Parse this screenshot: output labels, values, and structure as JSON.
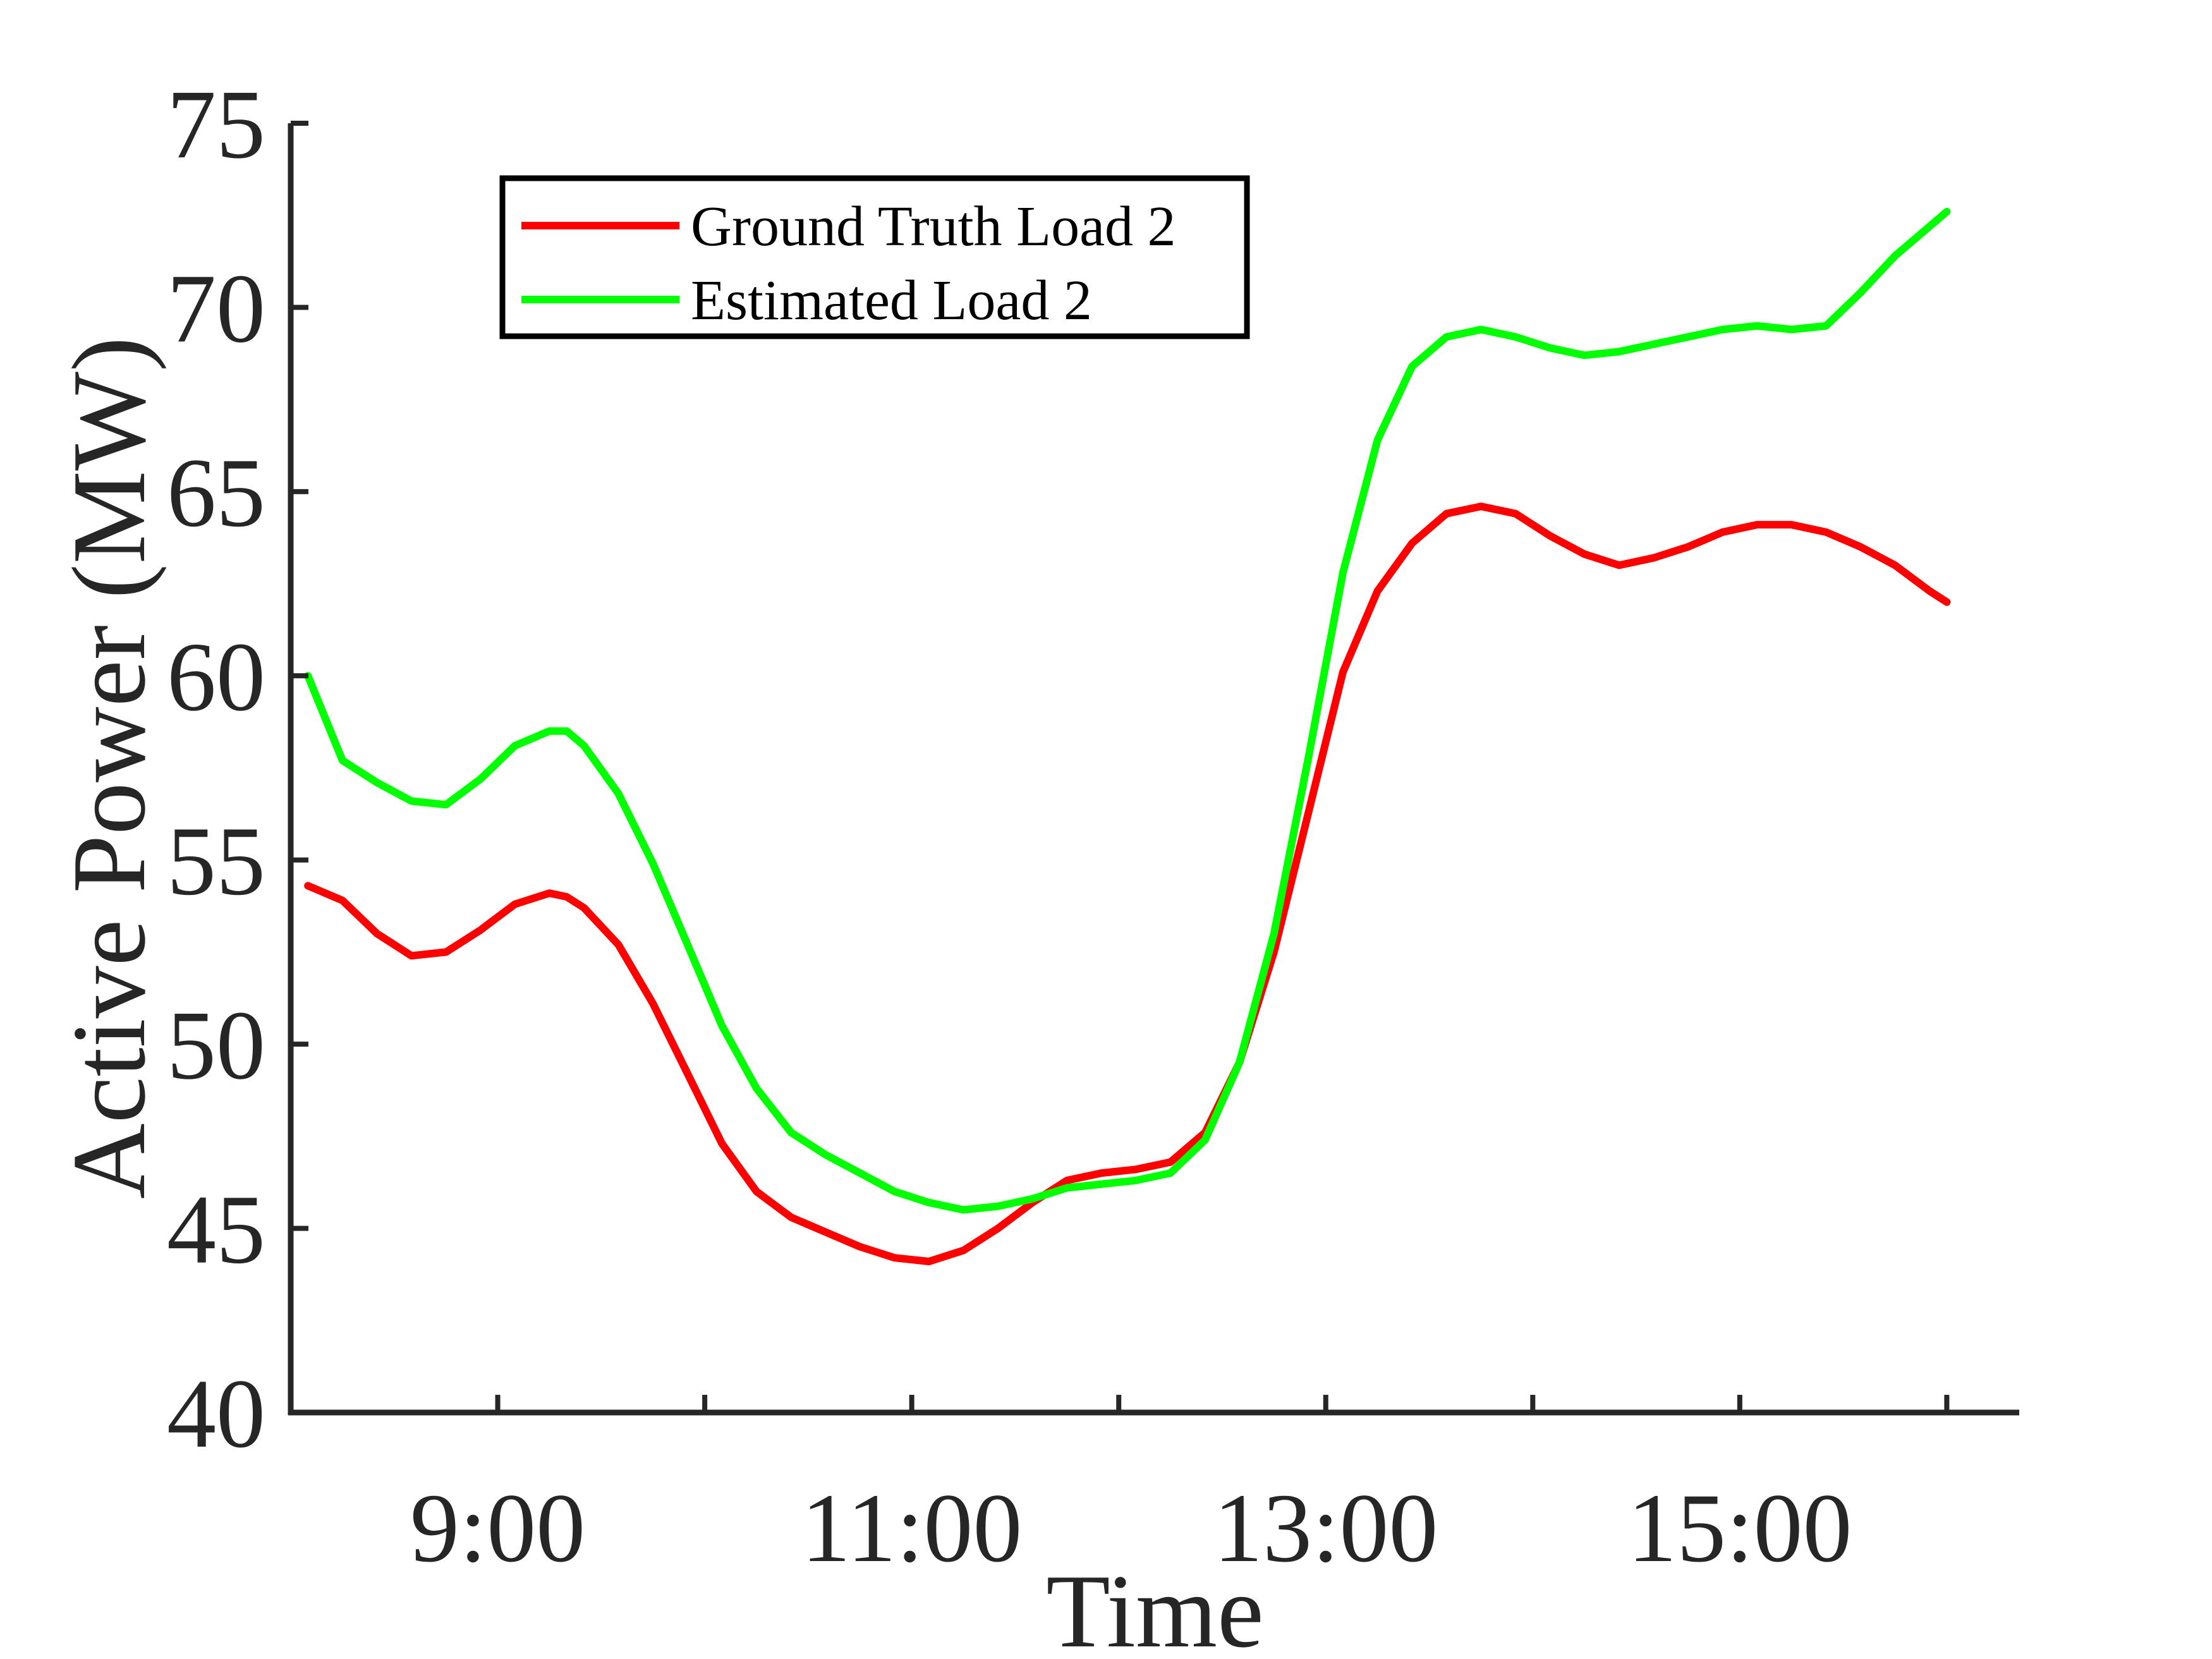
{
  "chart_data": {
    "type": "line",
    "xlabel": "Time",
    "ylabel": "Active Power (MW)",
    "xlim": [
      8.0,
      16.35
    ],
    "ylim": [
      40,
      75
    ],
    "xticks": [
      9,
      10,
      11,
      12,
      13,
      14,
      15,
      16
    ],
    "xtick_labels": [
      "9:00",
      "",
      "11:00",
      "",
      "13:00",
      "",
      "15:00",
      ""
    ],
    "yticks": [
      40,
      45,
      50,
      55,
      60,
      65,
      70,
      75
    ],
    "ytick_labels": [
      "40",
      "45",
      "50",
      "55",
      "60",
      "65",
      "70",
      "75"
    ],
    "grid": false,
    "legend_position": "top-left",
    "x": [
      8.083,
      8.25,
      8.417,
      8.583,
      8.75,
      8.917,
      9.083,
      9.25,
      9.333,
      9.417,
      9.583,
      9.75,
      9.917,
      10.083,
      10.25,
      10.417,
      10.583,
      10.75,
      10.917,
      11.083,
      11.25,
      11.417,
      11.583,
      11.75,
      11.917,
      12.083,
      12.25,
      12.417,
      12.583,
      12.75,
      12.917,
      13.083,
      13.25,
      13.417,
      13.583,
      13.75,
      13.917,
      14.083,
      14.25,
      14.417,
      14.583,
      14.75,
      14.917,
      15.083,
      15.25,
      15.417,
      15.583,
      15.75,
      15.917,
      16.0
    ],
    "series": [
      {
        "name": "Ground Truth Load 2",
        "color": "#ff0000",
        "values": [
          54.3,
          53.9,
          53.0,
          52.4,
          52.5,
          53.1,
          53.8,
          54.1,
          54.0,
          53.7,
          52.7,
          51.1,
          49.2,
          47.3,
          46.0,
          45.3,
          44.9,
          44.5,
          44.2,
          44.1,
          44.4,
          45.0,
          45.7,
          46.3,
          46.5,
          46.6,
          46.8,
          47.6,
          49.5,
          52.5,
          56.3,
          60.1,
          62.3,
          63.6,
          64.4,
          64.6,
          64.4,
          63.8,
          63.3,
          63.0,
          63.2,
          63.5,
          63.9,
          64.1,
          64.1,
          63.9,
          63.5,
          63.0,
          62.3,
          62.0
        ]
      },
      {
        "name": "Estimated Load 2",
        "color": "#00ff00",
        "values": [
          60.0,
          57.7,
          57.1,
          56.6,
          56.5,
          57.2,
          58.1,
          58.5,
          58.5,
          58.1,
          56.8,
          54.9,
          52.7,
          50.5,
          48.8,
          47.6,
          47.0,
          46.5,
          46.0,
          45.7,
          45.5,
          45.6,
          45.8,
          46.1,
          46.2,
          46.3,
          46.5,
          47.4,
          49.5,
          53.0,
          57.8,
          62.8,
          66.4,
          68.4,
          69.2,
          69.4,
          69.2,
          68.9,
          68.7,
          68.8,
          69.0,
          69.2,
          69.4,
          69.5,
          69.4,
          69.5,
          70.4,
          71.4,
          72.2,
          72.6
        ]
      }
    ]
  }
}
